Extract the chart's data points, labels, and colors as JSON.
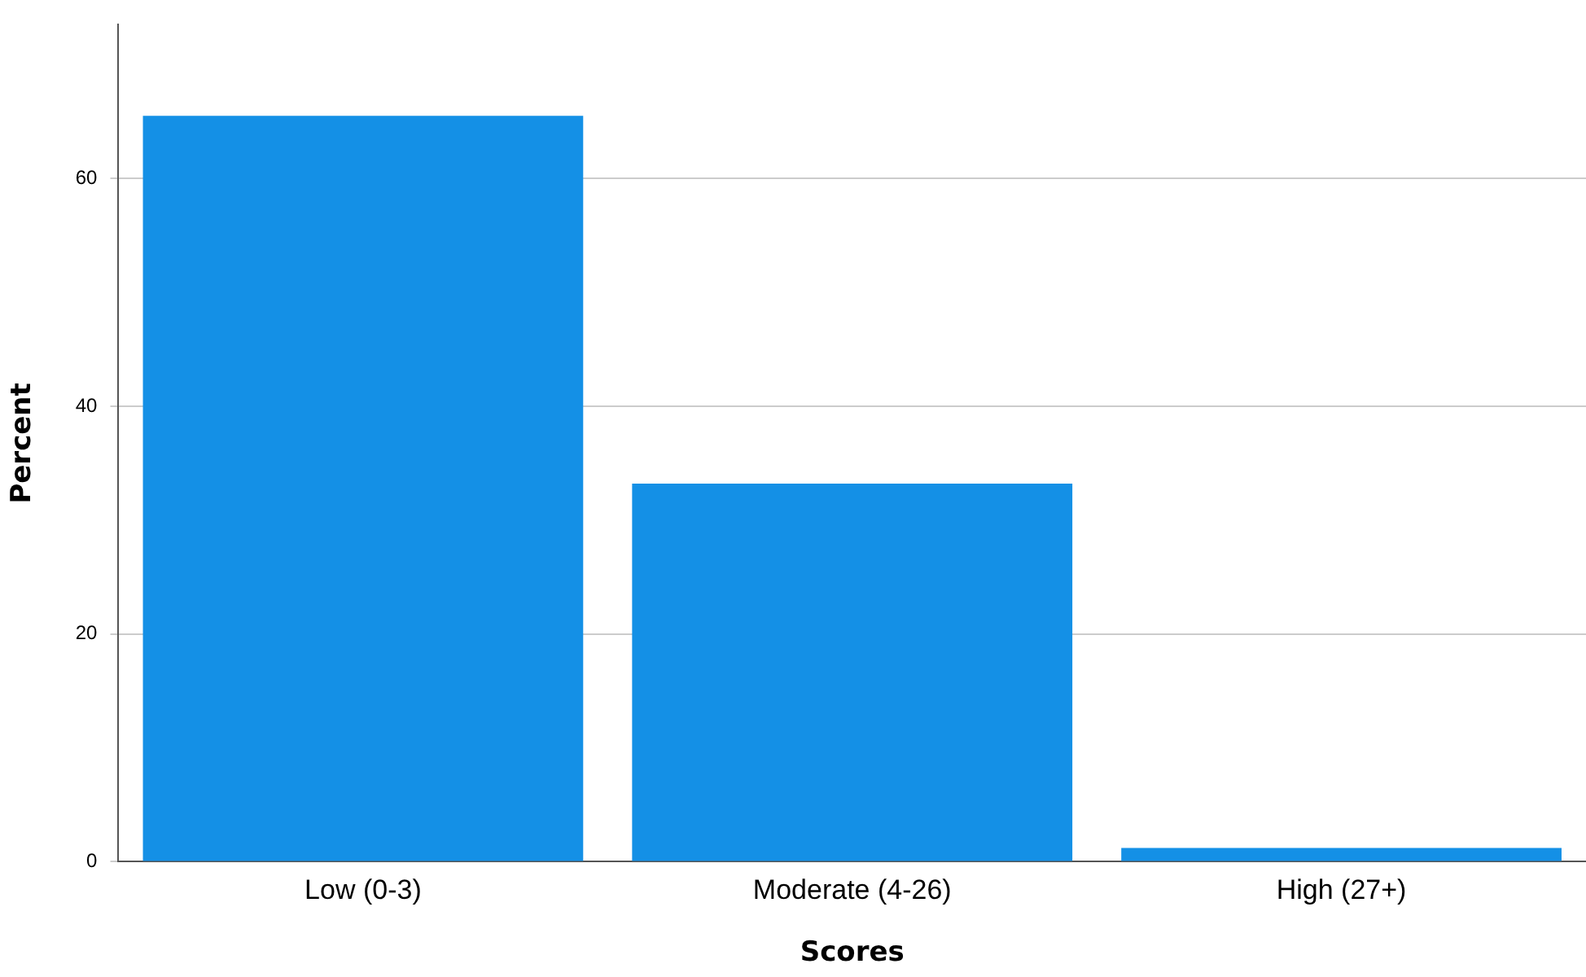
{
  "chart_data": {
    "type": "bar",
    "xlabel": "Scores",
    "ylabel": "Percent",
    "categories": [
      "Low (0-3)",
      "Moderate (4-26)",
      "High (27+)"
    ],
    "values": [
      65.5,
      33.2,
      1.2
    ],
    "color": "#1490e6",
    "ylim": [
      0,
      73.5
    ],
    "yticks": [
      0,
      20,
      40,
      60
    ],
    "grid": "y",
    "legend": false
  }
}
